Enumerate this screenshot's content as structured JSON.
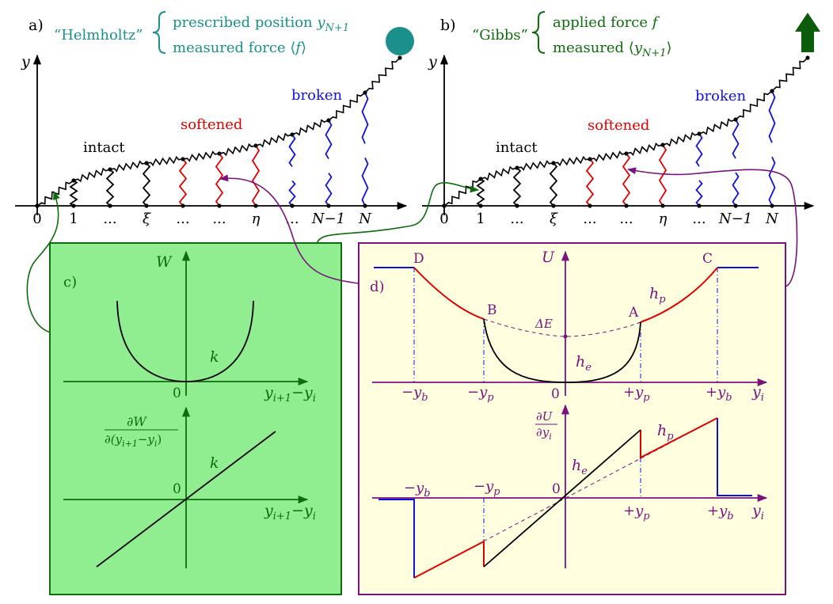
{
  "colors": {
    "teal": "#1a8f8c",
    "darkgreen": "#0e6b0e",
    "red": "#e00000",
    "blue": "#1010e0",
    "purple": "#7a127a",
    "panel_c_fill": "#90ee90",
    "panel_d_fill": "#ffffe0",
    "black": "#000000",
    "arrow": "#0b5d0b"
  },
  "panel_a": {
    "tag": "a)",
    "ensemble": "“Helmholtz”",
    "line1": "prescribed position ",
    "line1_var": "y",
    "line1_sub": "N+1",
    "line2": "measured force ⟨",
    "line2_var": "f",
    "line2_end": "⟩",
    "device_icon": "circle-icon"
  },
  "panel_b": {
    "tag": "b)",
    "ensemble": "“Gibbs”",
    "line1": "applied force ",
    "line1_var": "f",
    "line2": "measured ⟨",
    "line2_var": "y",
    "line2_sub": "N+1",
    "line2_end": "⟩",
    "device_icon": "arrow-up-icon"
  },
  "chain": {
    "y_axis": "y",
    "label_intact": "intact",
    "label_softened": "softened",
    "label_broken": "broken",
    "ticks": [
      "0",
      "1",
      "...",
      "ξ",
      "...",
      "...",
      "η",
      "...",
      "N−1",
      "N"
    ]
  },
  "panel_c": {
    "tag": "c)",
    "top_ylabel": "W",
    "top_origin": "0",
    "top_k": "k",
    "top_xlabel_a": "y",
    "top_xlabel_a_sub": "i+1",
    "top_xlabel_mid": "−",
    "top_xlabel_b": "y",
    "top_xlabel_b_sub": "i",
    "bot_ylabel_num": "∂W",
    "bot_ylabel_den": "∂(y",
    "bot_ylabel_den_sub1": "i+1",
    "bot_ylabel_den_mid": "−y",
    "bot_ylabel_den_sub2": "i",
    "bot_ylabel_den_end": ")",
    "bot_origin": "0",
    "bot_k": "k",
    "bot_xlabel_a": "y",
    "bot_xlabel_a_sub": "i+1",
    "bot_xlabel_mid": "−",
    "bot_xlabel_b": "y",
    "bot_xlabel_b_sub": "i"
  },
  "panel_d": {
    "tag": "d)",
    "top_ylabel": "U",
    "pt_D": "D",
    "pt_C": "C",
    "pt_B": "B",
    "pt_A": "A",
    "hp": "h",
    "hp_sub": "p",
    "he": "h",
    "he_sub": "e",
    "dE": "ΔE",
    "origin": "0",
    "tick_neg_yb": "−y",
    "tick_neg_yb_sub": "b",
    "tick_neg_yp": "−y",
    "tick_neg_yp_sub": "p",
    "tick_pos_yp": "+y",
    "tick_pos_yp_sub": "p",
    "tick_pos_yb": "+y",
    "tick_pos_yb_sub": "b",
    "xlabel": "y",
    "xlabel_sub": "i",
    "bot_ylabel_num": "∂U",
    "bot_ylabel_den": "∂y",
    "bot_ylabel_den_sub": "i",
    "bot_origin": "0",
    "bot_hp": "h",
    "bot_hp_sub": "p",
    "bot_he": "h",
    "bot_he_sub": "e",
    "bot_tick_neg_yb": "−y",
    "bot_tick_neg_yb_sub": "b",
    "bot_tick_neg_yp": "−y",
    "bot_tick_neg_yp_sub": "p",
    "bot_tick_pos_yp": "+y",
    "bot_tick_pos_yp_sub": "p",
    "bot_tick_pos_yb": "+y",
    "bot_tick_pos_yb_sub": "b",
    "bot_xlabel": "y",
    "bot_xlabel_sub": "i"
  }
}
